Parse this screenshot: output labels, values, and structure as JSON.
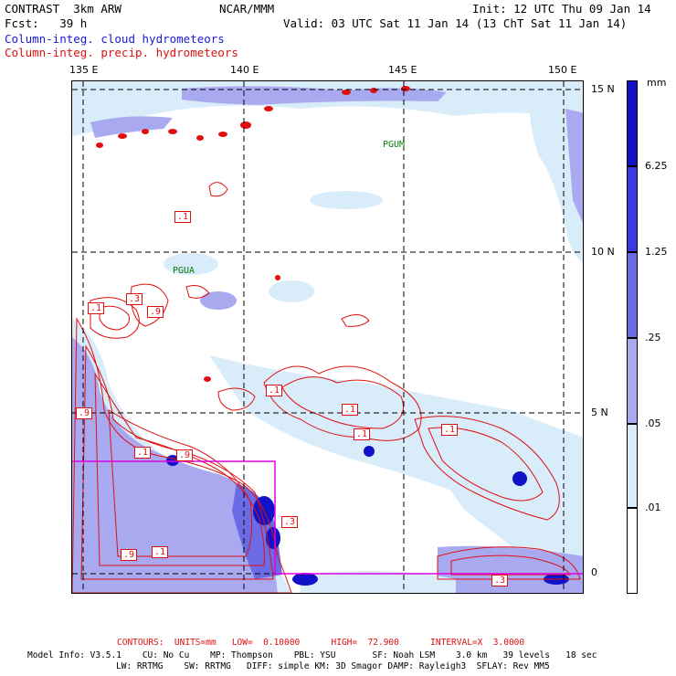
{
  "header": {
    "model": "CONTRAST  3km ARW",
    "org": "NCAR/MMM",
    "init": "Init: 12 UTC Thu 09 Jan 14",
    "fcst": "Fcst:   39 h",
    "valid": "Valid: 03 UTC Sat 11 Jan 14 (13 ChT Sat 11 Jan 14)",
    "field1": "Column-integ. cloud hydrometeors",
    "field2": "Column-integ. precip. hydrometeors"
  },
  "axes": {
    "lon": [
      "135 E",
      "140 E",
      "145 E",
      "150 E"
    ],
    "lat": [
      "15 N",
      "10 N",
      "5 N",
      "0"
    ]
  },
  "stations": [
    "PGUM",
    "PGUA"
  ],
  "contour_labels": [
    ".1",
    ".3",
    ".9",
    ".1",
    ".1",
    ".1",
    ".9",
    ".1",
    ".1",
    ".1",
    ".9",
    ".3",
    ".9",
    ".1",
    ".3"
  ],
  "colorbar": {
    "units": "mm",
    "ticks": [
      "6.25",
      "1.25",
      ".25",
      ".05",
      ".01"
    ],
    "colors": [
      "#1212c8",
      "#3a3ae0",
      "#6b6be6",
      "#a9a9f0",
      "#d8ecfa",
      "#ffffff"
    ]
  },
  "footer": {
    "contours": "CONTOURS:  UNITS=mm   LOW=  0.10000      HIGH=  72.900      INTERVAL=X  3.0000",
    "info1": "Model Info: V3.5.1    CU: No Cu    MP: Thompson    PBL: YSU       SF: Noah LSM    3.0 km   39 levels   18 sec",
    "info2": "LW: RRTMG    SW: RRTMG   DIFF: simple KM: 3D Smagor DAMP: Rayleigh3  SFLAY: Rev MM5"
  }
}
